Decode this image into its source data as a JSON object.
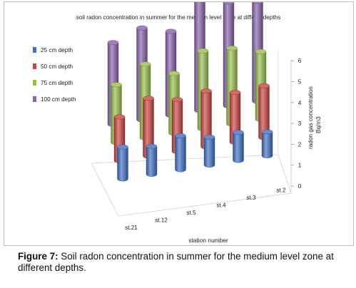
{
  "chart_data": {
    "type": "bar",
    "title": "soil radon concentration in summer for the medium level zone at differnt depths",
    "xlabel": "station number",
    "zlabel": "radon gas concentration Bq/m3",
    "categories": [
      "st.21",
      "st.12",
      "st.5",
      "st.4",
      "st.3",
      "st.2"
    ],
    "zlim": [
      0,
      6
    ],
    "zticks": [
      "0",
      "1",
      "2",
      "3",
      "4",
      "5",
      "6"
    ],
    "legend_position": "top-left",
    "series": [
      {
        "name": "25 cm depth",
        "color": "#3e6fc4",
        "values": [
          1.6,
          1.4,
          1.7,
          1.4,
          1.4,
          1.2
        ]
      },
      {
        "name": "50 cm depth",
        "color": "#c9433f",
        "values": [
          2.2,
          2.9,
          2.6,
          2.8,
          2.5,
          2.6
        ]
      },
      {
        "name": "75 cm depth",
        "color": "#97bf4a",
        "values": [
          2.9,
          3.7,
          3.0,
          3.9,
          3.8,
          3.4
        ]
      },
      {
        "name": "100 cm depth",
        "color": "#8862ac",
        "values": [
          4.1,
          4.6,
          4.2,
          5.6,
          5.2,
          5.0
        ]
      }
    ]
  },
  "caption": {
    "label": "Figure 7:",
    "text": " Soil radon concentration in summer for the medium level zone at different depths."
  }
}
